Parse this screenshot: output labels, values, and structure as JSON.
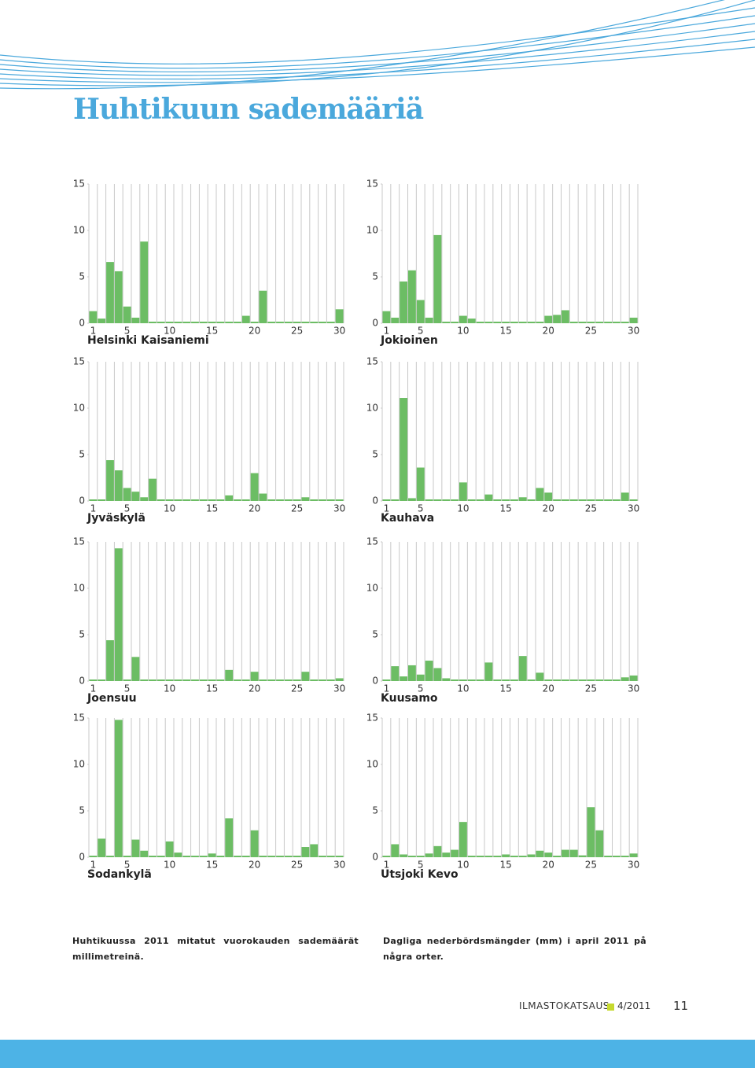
{
  "header": {
    "title": "Huhtikuun sademääriä"
  },
  "chart_data": [
    {
      "type": "bar",
      "title": "Helsinki Kaisaniemi",
      "color": "#6cbd64",
      "categories": [
        1,
        null,
        null,
        null,
        5,
        null,
        null,
        null,
        null,
        10,
        null,
        null,
        null,
        null,
        15,
        null,
        null,
        null,
        null,
        20,
        null,
        null,
        null,
        null,
        25,
        null,
        null,
        null,
        null,
        30
      ],
      "values": [
        1.3,
        0.5,
        6.6,
        5.6,
        1.8,
        0.6,
        8.8,
        0,
        0,
        0,
        0,
        0,
        0,
        0,
        0,
        0,
        0,
        0,
        0.8,
        0,
        3.5,
        0,
        0,
        0,
        0,
        0,
        0,
        0,
        0,
        1.5
      ],
      "ylim": [
        0,
        15
      ],
      "yticks": [
        0,
        5,
        10,
        15
      ],
      "grid": true
    },
    {
      "type": "bar",
      "title": "Jokioinen",
      "color": "#6cbd64",
      "categories": [
        1,
        null,
        null,
        null,
        5,
        null,
        null,
        null,
        null,
        10,
        null,
        null,
        null,
        null,
        15,
        null,
        null,
        null,
        null,
        20,
        null,
        null,
        null,
        null,
        25,
        null,
        null,
        null,
        null,
        30
      ],
      "values": [
        1.3,
        0.6,
        4.5,
        5.7,
        2.5,
        0.6,
        9.5,
        0,
        0,
        0.8,
        0.5,
        0,
        0,
        0,
        0,
        0,
        0,
        0,
        0,
        0.8,
        0.9,
        1.4,
        0,
        0,
        0,
        0,
        0,
        0,
        0,
        0.6
      ],
      "ylim": [
        0,
        15
      ],
      "yticks": [
        0,
        5,
        10,
        15
      ],
      "grid": true
    },
    {
      "type": "bar",
      "title": "Jyväskylä",
      "color": "#6cbd64",
      "categories": [
        1,
        null,
        null,
        null,
        5,
        null,
        null,
        null,
        null,
        10,
        null,
        null,
        null,
        null,
        15,
        null,
        null,
        null,
        null,
        20,
        null,
        null,
        null,
        null,
        25,
        null,
        null,
        null,
        null,
        30
      ],
      "values": [
        0,
        0,
        4.4,
        3.3,
        1.4,
        1.0,
        0.4,
        2.4,
        0,
        0,
        0,
        0,
        0,
        0,
        0,
        0,
        0.6,
        0,
        0,
        3.0,
        0.8,
        0,
        0,
        0,
        0,
        0.4,
        0,
        0,
        0,
        0
      ],
      "ylim": [
        0,
        15
      ],
      "yticks": [
        0,
        5,
        10,
        15
      ],
      "grid": true
    },
    {
      "type": "bar",
      "title": "Kauhava",
      "color": "#6cbd64",
      "categories": [
        1,
        null,
        null,
        null,
        5,
        null,
        null,
        null,
        null,
        10,
        null,
        null,
        null,
        null,
        15,
        null,
        null,
        null,
        null,
        20,
        null,
        null,
        null,
        null,
        25,
        null,
        null,
        null,
        null,
        30
      ],
      "values": [
        0,
        0,
        11.1,
        0.3,
        3.6,
        0,
        0,
        0,
        0,
        2.0,
        0,
        0,
        0.7,
        0,
        0,
        0,
        0.4,
        0,
        1.4,
        0.9,
        0,
        0,
        0,
        0,
        0,
        0,
        0,
        0,
        0.9,
        0
      ],
      "ylim": [
        0,
        15
      ],
      "yticks": [
        0,
        5,
        10,
        15
      ],
      "grid": true
    },
    {
      "type": "bar",
      "title": "Joensuu",
      "color": "#6cbd64",
      "categories": [
        1,
        null,
        null,
        null,
        5,
        null,
        null,
        null,
        null,
        10,
        null,
        null,
        null,
        null,
        15,
        null,
        null,
        null,
        null,
        20,
        null,
        null,
        null,
        null,
        25,
        null,
        null,
        null,
        null,
        30
      ],
      "values": [
        0,
        0,
        4.4,
        14.3,
        0,
        2.6,
        0,
        0,
        0,
        0,
        0,
        0,
        0,
        0,
        0,
        0,
        1.2,
        0,
        0,
        1.0,
        0,
        0,
        0,
        0,
        0,
        1.0,
        0,
        0,
        0,
        0.3
      ],
      "ylim": [
        0,
        15
      ],
      "yticks": [
        0,
        5,
        10,
        15
      ],
      "grid": true
    },
    {
      "type": "bar",
      "title": "Kuusamo",
      "color": "#6cbd64",
      "categories": [
        1,
        null,
        null,
        null,
        5,
        null,
        null,
        null,
        null,
        10,
        null,
        null,
        null,
        null,
        15,
        null,
        null,
        null,
        null,
        20,
        null,
        null,
        null,
        null,
        25,
        null,
        null,
        null,
        null,
        30
      ],
      "values": [
        0,
        1.6,
        0.5,
        1.7,
        0.7,
        2.2,
        1.4,
        0.3,
        0,
        0,
        0,
        0,
        2.0,
        0,
        0,
        0,
        2.7,
        0,
        0.9,
        0,
        0,
        0,
        0,
        0,
        0,
        0,
        0,
        0,
        0.4,
        0.6
      ],
      "ylim": [
        0,
        15
      ],
      "yticks": [
        0,
        5,
        10,
        15
      ],
      "grid": true
    },
    {
      "type": "bar",
      "title": "Sodankylä",
      "color": "#6cbd64",
      "categories": [
        1,
        null,
        null,
        null,
        5,
        null,
        null,
        null,
        null,
        10,
        null,
        null,
        null,
        null,
        15,
        null,
        null,
        null,
        null,
        20,
        null,
        null,
        null,
        null,
        25,
        null,
        null,
        null,
        null,
        30
      ],
      "values": [
        0,
        2.0,
        0,
        14.8,
        0,
        1.9,
        0.7,
        0,
        0,
        1.7,
        0.5,
        0,
        0,
        0,
        0.4,
        0,
        4.2,
        0,
        0,
        2.9,
        0,
        0,
        0,
        0,
        0,
        1.1,
        1.4,
        0,
        0,
        0
      ],
      "ylim": [
        0,
        15
      ],
      "yticks": [
        0,
        5,
        10,
        15
      ],
      "grid": true
    },
    {
      "type": "bar",
      "title": "Utsjoki Kevo",
      "color": "#6cbd64",
      "categories": [
        1,
        null,
        null,
        null,
        5,
        null,
        null,
        null,
        null,
        10,
        null,
        null,
        null,
        null,
        15,
        null,
        null,
        null,
        null,
        20,
        null,
        null,
        null,
        null,
        25,
        null,
        null,
        null,
        null,
        30
      ],
      "values": [
        0,
        1.4,
        0.3,
        0,
        0,
        0.4,
        1.2,
        0.5,
        0.8,
        3.8,
        0,
        0,
        0,
        0,
        0.3,
        0,
        0,
        0.3,
        0.7,
        0.5,
        0,
        0.8,
        0.8,
        0.2,
        5.4,
        2.9,
        0,
        0,
        0,
        0.4
      ],
      "ylim": [
        0,
        15
      ],
      "yticks": [
        0,
        5,
        10,
        15
      ],
      "grid": true
    }
  ],
  "captions": {
    "fi": "Huhtikuussa 2011 mitatut vuorokauden sademäärät millimetreinä.",
    "sv": "Dagliga nederbördsmängder (mm) i april 2011 på några orter."
  },
  "footer": {
    "publication": "ILMASTOKATSAUS",
    "issue": "4/2011",
    "page": "11"
  }
}
